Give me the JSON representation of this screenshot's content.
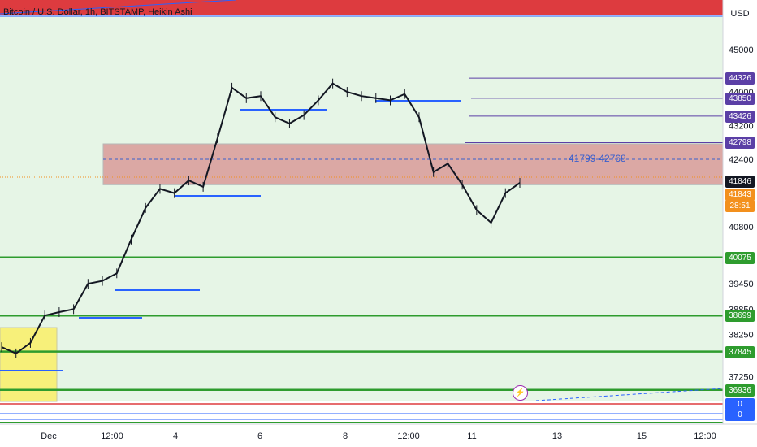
{
  "header": {
    "symbol_title": "Bitcoin / U.S. Dollar, 1h, BITSTAMP, Heikin Ashi",
    "currency": "USD"
  },
  "chart_data": {
    "type": "candlestick",
    "title": "Bitcoin / U.S. Dollar, 1h, BITSTAMP, Heikin Ashi",
    "xlabel": "",
    "ylabel": "USD",
    "ylim": [
      36700,
      45600
    ],
    "x_ticks": [
      "Dec",
      "12:00",
      "4",
      "6",
      "8",
      "12:00",
      "11",
      "13",
      "15",
      "12:00"
    ],
    "y_ticks": [
      45000,
      44000,
      43200,
      42400,
      40800,
      39450,
      38850,
      38250,
      37250
    ],
    "price_points": [
      {
        "t": "Dec",
        "price": 37950
      },
      {
        "t": "Dec",
        "price": 37800
      },
      {
        "t": "Dec",
        "price": 38050
      },
      {
        "t": "12:00",
        "price": 38700
      },
      {
        "t": "12:00",
        "price": 38780
      },
      {
        "t": "12:00",
        "price": 38850
      },
      {
        "t": "12:00",
        "price": 39450
      },
      {
        "t": "12:00",
        "price": 39520
      },
      {
        "t": "4",
        "price": 39700
      },
      {
        "t": "4",
        "price": 40500
      },
      {
        "t": "4",
        "price": 41250
      },
      {
        "t": "4",
        "price": 41700
      },
      {
        "t": "4",
        "price": 41600
      },
      {
        "t": "4",
        "price": 41900
      },
      {
        "t": "6",
        "price": 41750
      },
      {
        "t": "6",
        "price": 42900
      },
      {
        "t": "6",
        "price": 44100
      },
      {
        "t": "6",
        "price": 43850
      },
      {
        "t": "6",
        "price": 43900
      },
      {
        "t": "8",
        "price": 43400
      },
      {
        "t": "8",
        "price": 43250
      },
      {
        "t": "8",
        "price": 43450
      },
      {
        "t": "8",
        "price": 43800
      },
      {
        "t": "12:00",
        "price": 44200
      },
      {
        "t": "12:00",
        "price": 44000
      },
      {
        "t": "12:00",
        "price": 43900
      },
      {
        "t": "12:00",
        "price": 43850
      },
      {
        "t": "12:00",
        "price": 43800
      },
      {
        "t": "11",
        "price": 43950
      },
      {
        "t": "11",
        "price": 43400
      },
      {
        "t": "11",
        "price": 42100
      },
      {
        "t": "11",
        "price": 42300
      },
      {
        "t": "11",
        "price": 41800
      },
      {
        "t": "11",
        "price": 41200
      },
      {
        "t": "11",
        "price": 40900
      },
      {
        "t": "11",
        "price": 41600
      },
      {
        "t": "11",
        "price": 41843
      }
    ],
    "horizontal_levels": [
      {
        "label": "44326",
        "value": 44326,
        "color": "#5b3fa6"
      },
      {
        "label": "43850",
        "value": 43850,
        "color": "#5b3fa6"
      },
      {
        "label": "43426",
        "value": 43426,
        "color": "#5b3fa6"
      },
      {
        "label": "42798",
        "value": 42798,
        "color": "#5b3fa6"
      },
      {
        "label": "40075",
        "value": 40075,
        "color": "#2e9c2e"
      },
      {
        "label": "38699",
        "value": 38699,
        "color": "#2e9c2e"
      },
      {
        "label": "37845",
        "value": 37845,
        "color": "#2e9c2e"
      },
      {
        "label": "36936",
        "value": 36936,
        "color": "#2e9c2e"
      }
    ],
    "zone": {
      "label": "41799-42768",
      "low": 41799,
      "high": 42768,
      "color": "#e0a3a3"
    },
    "current_price": {
      "label": "41846",
      "value": 41846
    },
    "last_price": {
      "label": "41843",
      "value": 41843
    },
    "countdown": "28:51",
    "bottom_tags": [
      "0",
      "0"
    ]
  },
  "colors": {
    "background_zone": "#e6f5e6",
    "upper_red": "#dd3b3f",
    "candle": "#131722",
    "level_purple": "#5b3fa6",
    "level_green": "#2e9c2e",
    "current_tag": "#131722",
    "last_tag": "#f3901d",
    "zone_fill": "#d9a09c"
  }
}
